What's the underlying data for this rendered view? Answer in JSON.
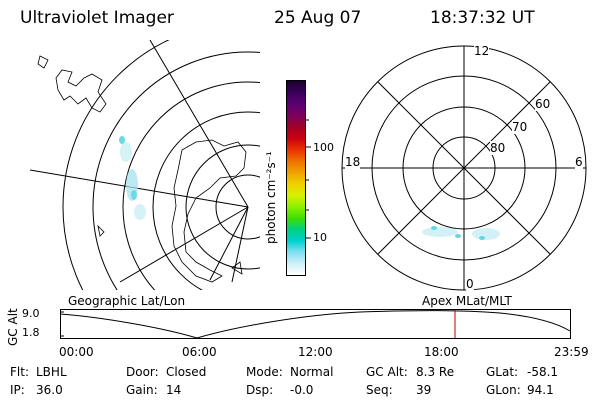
{
  "header": {
    "instrument": "Ultraviolet Imager",
    "date": "25 Aug 07",
    "time": "18:37:32 UT"
  },
  "colorbar": {
    "unit_label": "photon cm⁻²s⁻¹",
    "ticks": [
      "100",
      "10"
    ],
    "colors": [
      "#1a0030",
      "#3a005a",
      "#5a0070",
      "#7a0060",
      "#a00028",
      "#c80010",
      "#e83000",
      "#f07000",
      "#f0a000",
      "#f0d000",
      "#d8f000",
      "#90f000",
      "#40e000",
      "#00d080",
      "#00d0d0",
      "#80e0f0",
      "#d0f0f8",
      "#ffffff"
    ]
  },
  "polar": {
    "clock_labels": [
      "12",
      "18",
      "6",
      "0"
    ],
    "lat_labels": [
      "60",
      "70",
      "80"
    ]
  },
  "timeline": {
    "ylabel": "GC Alt",
    "y_ticks": [
      "9.0",
      "1.8"
    ],
    "left_title": "Geographic Lat/Lon",
    "right_title": "Apex MLat/MLT",
    "x_ticks": [
      "00:00",
      "06:00",
      "12:00",
      "18:00",
      "23:59"
    ]
  },
  "status": {
    "row1": [
      {
        "label": "Flt:",
        "value": "LBHL"
      },
      {
        "label": "Door:",
        "value": "Closed"
      },
      {
        "label": "Mode:",
        "value": "Normal"
      },
      {
        "label": "GC Alt:",
        "value": "8.3 Re"
      },
      {
        "label": "GLat:",
        "value": "-58.1"
      }
    ],
    "row2": [
      {
        "label": "IP:",
        "value": "36.0"
      },
      {
        "label": "Gain:",
        "value": "14"
      },
      {
        "label": "Dsp:",
        "value": "-0.0"
      },
      {
        "label": "Seq:",
        "value": "39"
      },
      {
        "label": "GLon:",
        "value": "94.1"
      }
    ]
  }
}
